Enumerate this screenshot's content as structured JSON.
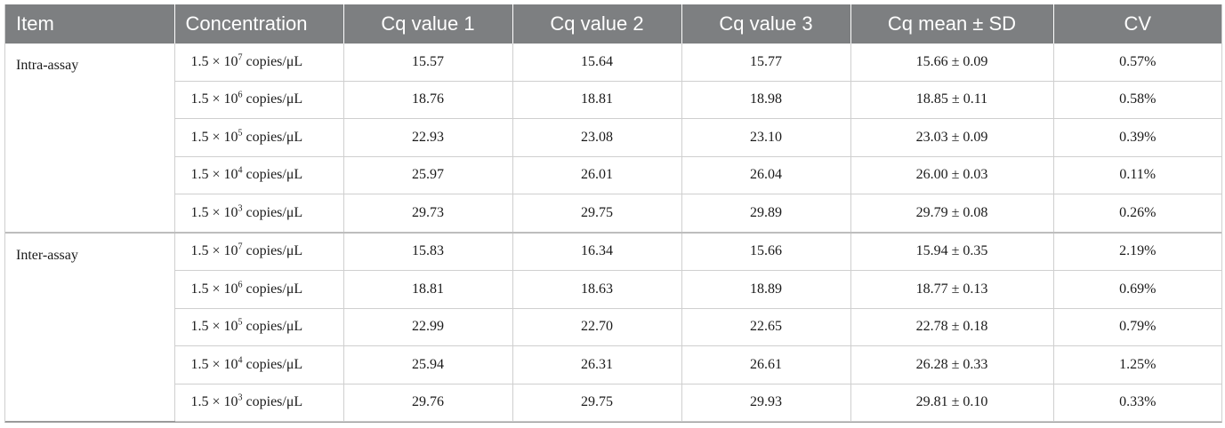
{
  "table": {
    "headers": [
      "Item",
      "Concentration",
      "Cq value 1",
      "Cq value 2",
      "Cq value 3",
      "Cq mean ± SD",
      "CV"
    ],
    "groups": [
      {
        "item": "Intra-assay",
        "rows": [
          {
            "base": "1.5 × 10",
            "exp": "7",
            "unit": " copies/μL",
            "cq1": "15.57",
            "cq2": "15.64",
            "cq3": "15.77",
            "mean_sd": "15.66 ± 0.09",
            "cv": "0.57%"
          },
          {
            "base": "1.5 × 10",
            "exp": "6",
            "unit": " copies/μL",
            "cq1": "18.76",
            "cq2": "18.81",
            "cq3": "18.98",
            "mean_sd": "18.85 ± 0.11",
            "cv": "0.58%"
          },
          {
            "base": "1.5 × 10",
            "exp": "5",
            "unit": " copies/μL",
            "cq1": "22.93",
            "cq2": "23.08",
            "cq3": "23.10",
            "mean_sd": "23.03 ± 0.09",
            "cv": "0.39%"
          },
          {
            "base": "1.5 × 10",
            "exp": "4",
            "unit": " copies/μL",
            "cq1": "25.97",
            "cq2": "26.01",
            "cq3": "26.04",
            "mean_sd": "26.00 ± 0.03",
            "cv": "0.11%"
          },
          {
            "base": "1.5 × 10",
            "exp": "3",
            "unit": " copies/μL",
            "cq1": "29.73",
            "cq2": "29.75",
            "cq3": "29.89",
            "mean_sd": "29.79 ± 0.08",
            "cv": "0.26%"
          }
        ]
      },
      {
        "item": "Inter-assay",
        "rows": [
          {
            "base": "1.5 × 10",
            "exp": "7",
            "unit": " copies/μL",
            "cq1": "15.83",
            "cq2": "16.34",
            "cq3": "15.66",
            "mean_sd": "15.94 ± 0.35",
            "cv": "2.19%"
          },
          {
            "base": "1.5 × 10",
            "exp": "6",
            "unit": " copies/μL",
            "cq1": "18.81",
            "cq2": "18.63",
            "cq3": "18.89",
            "mean_sd": "18.77 ± 0.13",
            "cv": "0.69%"
          },
          {
            "base": "1.5 × 10",
            "exp": "5",
            "unit": " copies/μL",
            "cq1": "22.99",
            "cq2": "22.70",
            "cq3": "22.65",
            "mean_sd": "22.78 ± 0.18",
            "cv": "0.79%"
          },
          {
            "base": "1.5 × 10",
            "exp": "4",
            "unit": " copies/μL",
            "cq1": "25.94",
            "cq2": "26.31",
            "cq3": "26.61",
            "mean_sd": "26.28 ± 0.33",
            "cv": "1.25%"
          },
          {
            "base": "1.5 × 10",
            "exp": "3",
            "unit": " copies/μL",
            "cq1": "29.76",
            "cq2": "29.75",
            "cq3": "29.93",
            "mean_sd": "29.81 ± 0.10",
            "cv": "0.33%"
          }
        ]
      }
    ]
  }
}
